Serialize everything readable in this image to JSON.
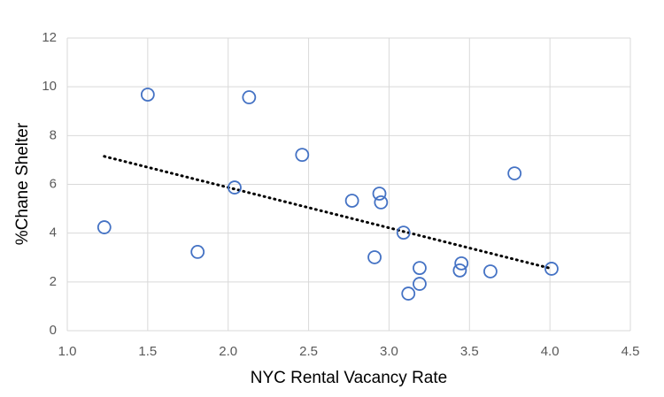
{
  "chart_data": {
    "type": "scatter",
    "x_label": "NYC Rental Vacancy Rate",
    "y_label": "%Chane Shelter",
    "series": [
      {
        "color": "#4472c4",
        "x": [
          1.23,
          1.5,
          1.81,
          2.04,
          2.13,
          2.46,
          2.77,
          2.91,
          2.94,
          2.95,
          3.09,
          3.12,
          3.19,
          3.19,
          3.44,
          3.45,
          3.63,
          3.78,
          4.01
        ],
        "values": [
          4.24,
          9.68,
          3.23,
          5.87,
          9.57,
          7.21,
          5.33,
          3.01,
          5.62,
          5.26,
          4.02,
          1.52,
          2.57,
          1.92,
          2.47,
          2.76,
          2.43,
          6.45,
          2.54
        ]
      }
    ],
    "trendline": "linear",
    "trendline_color": "#000000",
    "xlim": [
      1.0,
      4.5
    ],
    "xticks": [
      {
        "value": 1.0,
        "label": "1.0"
      },
      {
        "value": 1.5,
        "label": "1.5"
      },
      {
        "value": 2.0,
        "label": "2.0"
      },
      {
        "value": 2.5,
        "label": "2.5"
      },
      {
        "value": 3.0,
        "label": "3.0"
      },
      {
        "value": 3.5,
        "label": "3.5"
      },
      {
        "value": 4.0,
        "label": "4.0"
      },
      {
        "value": 4.5,
        "label": "4.5"
      }
    ],
    "ylim": [
      0,
      12
    ],
    "yticks": [
      0,
      2,
      4,
      6,
      8,
      10,
      12
    ],
    "grid": true
  }
}
